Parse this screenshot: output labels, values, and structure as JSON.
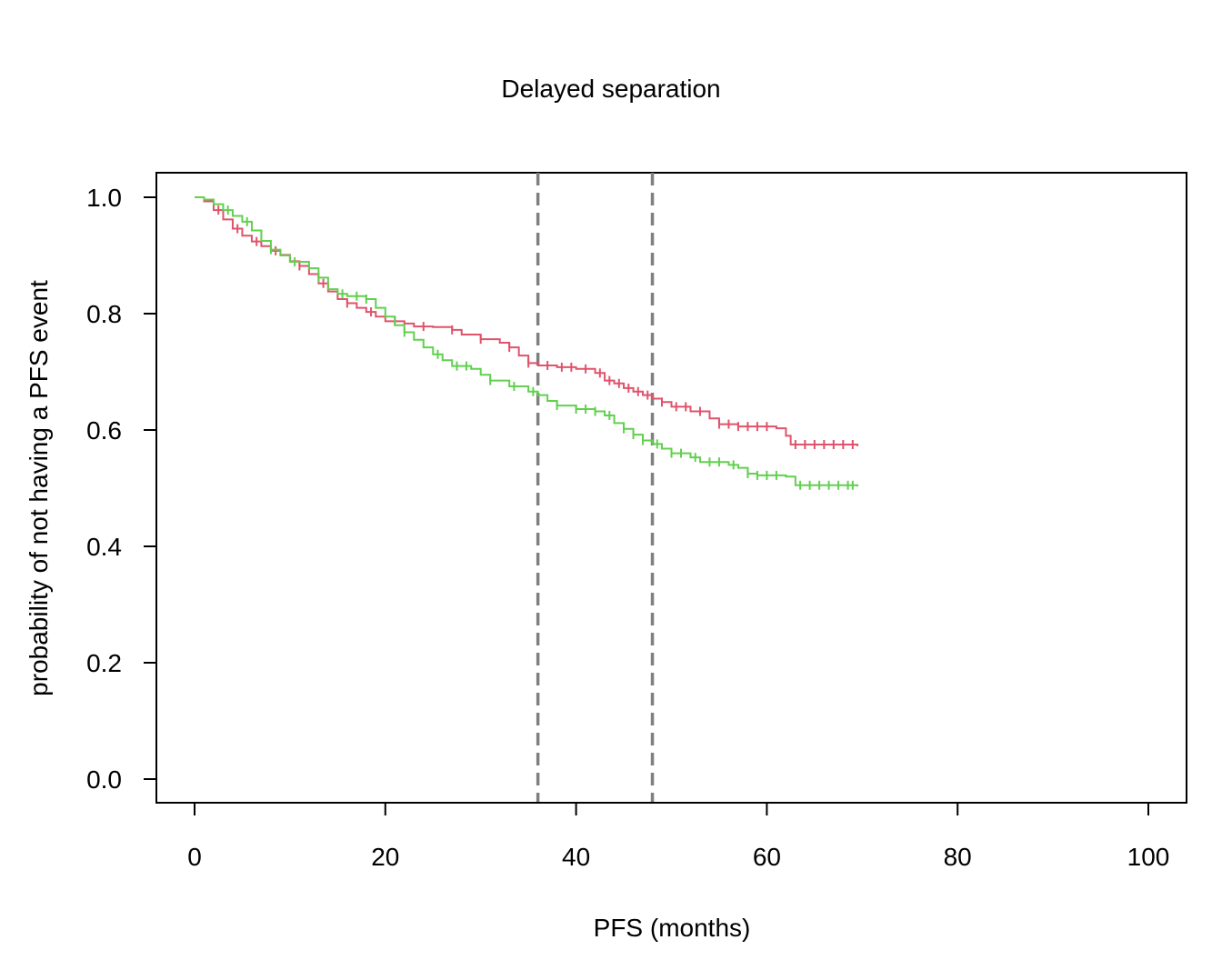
{
  "chart_data": {
    "type": "line",
    "title": "Delayed separation",
    "xlabel": "PFS (months)",
    "ylabel": "probability of not having a PFS event",
    "xlim": [
      0,
      100
    ],
    "ylim": [
      0,
      1
    ],
    "x_ticks": [
      "0",
      "20",
      "40",
      "60",
      "80",
      "100"
    ],
    "y_ticks": [
      "0.0",
      "0.2",
      "0.4",
      "0.6",
      "0.8",
      "1.0"
    ],
    "grid": false,
    "legend": "none",
    "reference_lines": [
      {
        "x": 36,
        "color": "#808080",
        "style": "dashed"
      },
      {
        "x": 48,
        "color": "#808080",
        "style": "dashed"
      }
    ],
    "series": [
      {
        "color": "#DF536B",
        "step": true,
        "points": [
          [
            0,
            1.0
          ],
          [
            1,
            0.993
          ],
          [
            2,
            0.978
          ],
          [
            3,
            0.962
          ],
          [
            4,
            0.946
          ],
          [
            5,
            0.934
          ],
          [
            6,
            0.924
          ],
          [
            7,
            0.916
          ],
          [
            8,
            0.908
          ],
          [
            9,
            0.901
          ],
          [
            10,
            0.89
          ],
          [
            11,
            0.882
          ],
          [
            12,
            0.868
          ],
          [
            13,
            0.852
          ],
          [
            14,
            0.838
          ],
          [
            15,
            0.825
          ],
          [
            16,
            0.818
          ],
          [
            17,
            0.81
          ],
          [
            18,
            0.803
          ],
          [
            19,
            0.795
          ],
          [
            20,
            0.787
          ],
          [
            22,
            0.783
          ],
          [
            23,
            0.778
          ],
          [
            25,
            0.777
          ],
          [
            27,
            0.772
          ],
          [
            28,
            0.764
          ],
          [
            30,
            0.756
          ],
          [
            32,
            0.75
          ],
          [
            33,
            0.742
          ],
          [
            34,
            0.728
          ],
          [
            35,
            0.715
          ],
          [
            36,
            0.711
          ],
          [
            38,
            0.708
          ],
          [
            40,
            0.705
          ],
          [
            42,
            0.698
          ],
          [
            43,
            0.685
          ],
          [
            44,
            0.68
          ],
          [
            45,
            0.672
          ],
          [
            46,
            0.666
          ],
          [
            47,
            0.66
          ],
          [
            48,
            0.654
          ],
          [
            49,
            0.648
          ],
          [
            50,
            0.64
          ],
          [
            52,
            0.632
          ],
          [
            54,
            0.62
          ],
          [
            55,
            0.61
          ],
          [
            57,
            0.606
          ],
          [
            61,
            0.603
          ],
          [
            62,
            0.59
          ],
          [
            62.5,
            0.575
          ],
          [
            69.5,
            0.572
          ]
        ],
        "censor_ticks_x": [
          2.5,
          4.5,
          6.5,
          8.5,
          11,
          13.5,
          16,
          18.5,
          21,
          24,
          27,
          30,
          33,
          35,
          37,
          38.5,
          39.5,
          41,
          42.5,
          43.5,
          44.5,
          45.5,
          46.5,
          47.5,
          49,
          50.5,
          51.5,
          53,
          55,
          56,
          57,
          58,
          59,
          60,
          63,
          64,
          65,
          66,
          67,
          68,
          69
        ]
      },
      {
        "color": "#61D04F",
        "step": true,
        "points": [
          [
            0,
            1.0
          ],
          [
            1,
            0.996
          ],
          [
            2,
            0.988
          ],
          [
            3,
            0.978
          ],
          [
            4,
            0.968
          ],
          [
            5,
            0.958
          ],
          [
            6,
            0.943
          ],
          [
            7,
            0.925
          ],
          [
            8,
            0.91
          ],
          [
            9,
            0.9
          ],
          [
            10,
            0.889
          ],
          [
            12,
            0.878
          ],
          [
            13,
            0.862
          ],
          [
            14,
            0.842
          ],
          [
            15,
            0.834
          ],
          [
            16,
            0.83
          ],
          [
            18,
            0.825
          ],
          [
            19,
            0.81
          ],
          [
            20,
            0.795
          ],
          [
            21,
            0.78
          ],
          [
            22,
            0.768
          ],
          [
            23,
            0.755
          ],
          [
            24,
            0.742
          ],
          [
            25,
            0.73
          ],
          [
            26,
            0.72
          ],
          [
            27,
            0.71
          ],
          [
            29,
            0.705
          ],
          [
            30,
            0.695
          ],
          [
            31,
            0.685
          ],
          [
            33,
            0.675
          ],
          [
            35,
            0.666
          ],
          [
            36,
            0.66
          ],
          [
            37,
            0.65
          ],
          [
            38,
            0.642
          ],
          [
            40,
            0.636
          ],
          [
            42,
            0.632
          ],
          [
            43,
            0.625
          ],
          [
            44,
            0.612
          ],
          [
            45,
            0.602
          ],
          [
            46,
            0.592
          ],
          [
            47,
            0.582
          ],
          [
            48,
            0.576
          ],
          [
            49,
            0.568
          ],
          [
            50,
            0.56
          ],
          [
            52,
            0.553
          ],
          [
            53,
            0.545
          ],
          [
            56,
            0.54
          ],
          [
            57,
            0.535
          ],
          [
            58,
            0.525
          ],
          [
            59,
            0.522
          ],
          [
            62,
            0.52
          ],
          [
            63,
            0.505
          ],
          [
            69.5,
            0.503
          ]
        ],
        "censor_ticks_x": [
          3.5,
          5.5,
          8,
          10.5,
          13,
          15.5,
          17,
          18,
          22,
          25.5,
          27.5,
          28.5,
          31,
          33.5,
          35.5,
          38,
          40,
          41,
          42,
          43.5,
          45,
          46,
          47,
          48.5,
          50,
          51,
          52.5,
          54,
          55,
          56.5,
          58,
          59,
          60,
          61,
          63.5,
          64.5,
          65.5,
          66.5,
          67.5,
          68.5,
          69
        ]
      }
    ]
  }
}
